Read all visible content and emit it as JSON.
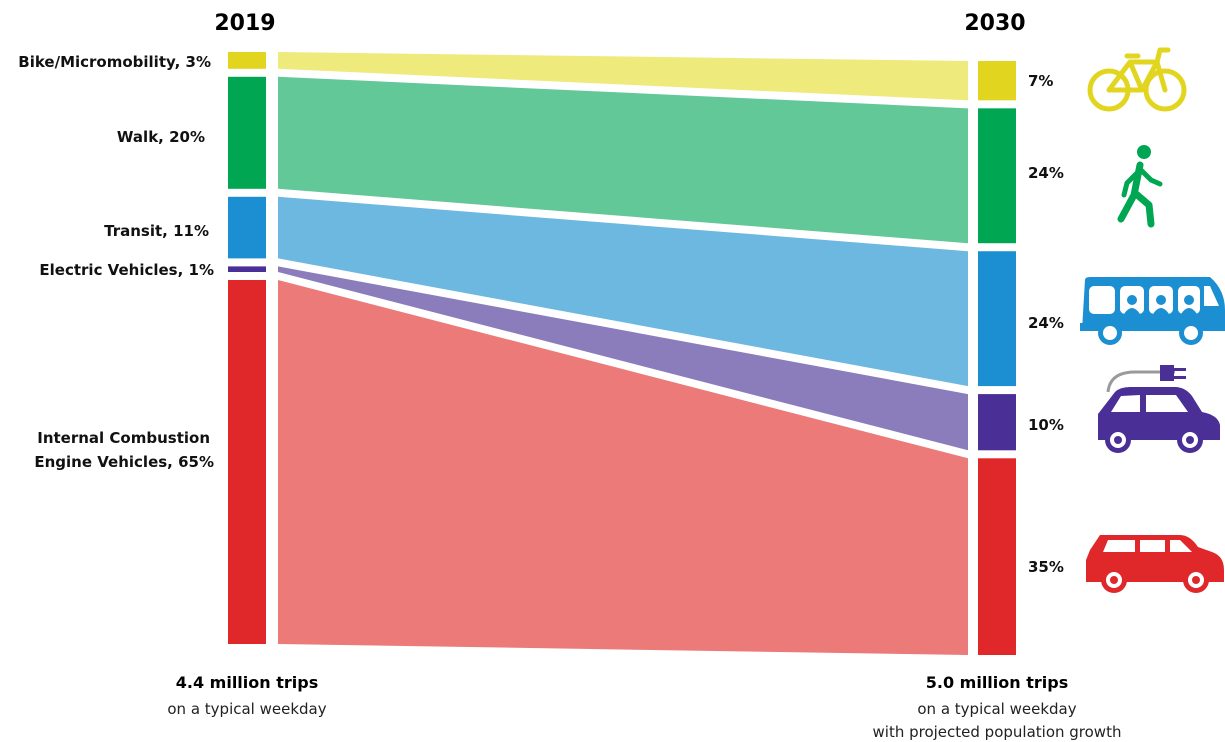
{
  "chart_data": {
    "type": "sankey",
    "left_column": {
      "year": "2019",
      "total": "4.4 million trips",
      "subtitle": "on a typical weekday"
    },
    "right_column": {
      "year": "2030",
      "total": "5.0 million trips",
      "subtitle_1": "on a typical weekday",
      "subtitle_2": "with projected population growth"
    },
    "categories": [
      {
        "id": "bike",
        "label": "Bike/Micromobility, 3%",
        "share_2019": 3,
        "share_2030": 7,
        "label_2030": "7%",
        "color": "#e2d520",
        "flow_color": "#eeea7c",
        "icon": "bicycle-icon"
      },
      {
        "id": "walk",
        "label": "Walk, 20%",
        "share_2019": 20,
        "share_2030": 24,
        "label_2030": "24%",
        "color": "#00a651",
        "flow_color": "#62c898",
        "icon": "pedestrian-icon"
      },
      {
        "id": "transit",
        "label": "Transit, 11%",
        "share_2019": 11,
        "share_2030": 24,
        "label_2030": "24%",
        "color": "#1b8fd1",
        "flow_color": "#6db8e0",
        "icon": "bus-icon"
      },
      {
        "id": "ev",
        "label": "Electric Vehicles, 1%",
        "share_2019": 1,
        "share_2030": 10,
        "label_2030": "10%",
        "color": "#4a2f96",
        "flow_color": "#8b7dbc",
        "icon": "electric-car-icon"
      },
      {
        "id": "ice",
        "label_line1": "Internal Combustion",
        "label_line2": "Engine Vehicles, 65%",
        "share_2019": 65,
        "share_2030": 35,
        "label_2030": "35%",
        "color": "#e0282b",
        "flow_color": "#eb7a79",
        "icon": "car-icon"
      }
    ]
  }
}
